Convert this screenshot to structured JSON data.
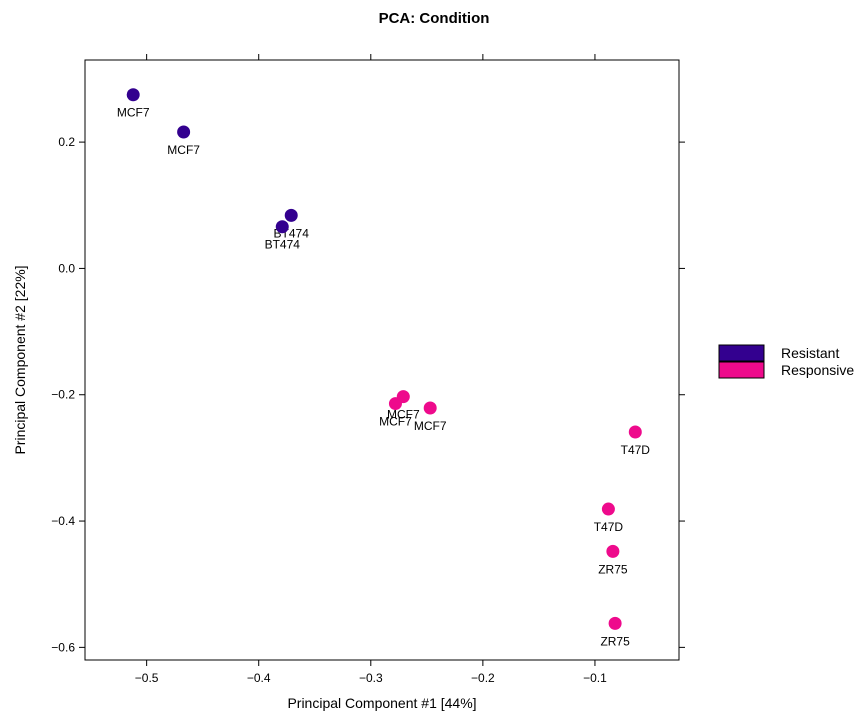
{
  "chart_data": {
    "type": "scatter",
    "title": "PCA: Condition",
    "xlabel": "Principal Component #1 [44%]",
    "ylabel": "Principal Component #2 [22%]",
    "xlim": [
      -0.555,
      -0.025
    ],
    "ylim": [
      -0.62,
      0.33
    ],
    "grid": false,
    "legend_position": "right",
    "x_ticks": [
      {
        "value": -0.5,
        "label": "−0.5"
      },
      {
        "value": -0.4,
        "label": "−0.4"
      },
      {
        "value": -0.3,
        "label": "−0.3"
      },
      {
        "value": -0.2,
        "label": "−0.2"
      },
      {
        "value": -0.1,
        "label": "−0.1"
      }
    ],
    "y_ticks": [
      {
        "value": 0.2,
        "label": "0.2"
      },
      {
        "value": 0.0,
        "label": "0.0"
      },
      {
        "value": -0.2,
        "label": "−0.2"
      },
      {
        "value": -0.4,
        "label": "−0.4"
      },
      {
        "value": -0.6,
        "label": "−0.6"
      }
    ],
    "series": [
      {
        "name": "Resistant",
        "color": "#33008f",
        "points": [
          {
            "x": -0.512,
            "y": 0.275,
            "label": "MCF7"
          },
          {
            "x": -0.467,
            "y": 0.216,
            "label": "MCF7"
          },
          {
            "x": -0.371,
            "y": 0.084,
            "label": "BT474"
          },
          {
            "x": -0.379,
            "y": 0.066,
            "label": "BT474"
          }
        ]
      },
      {
        "name": "Responsive",
        "color": "#ee0a8c",
        "points": [
          {
            "x": -0.271,
            "y": -0.203,
            "label": "MCF7"
          },
          {
            "x": -0.278,
            "y": -0.214,
            "label": "MCF7"
          },
          {
            "x": -0.247,
            "y": -0.221,
            "label": "MCF7"
          },
          {
            "x": -0.064,
            "y": -0.259,
            "label": "T47D"
          },
          {
            "x": -0.088,
            "y": -0.381,
            "label": "T47D"
          },
          {
            "x": -0.084,
            "y": -0.448,
            "label": "ZR75"
          },
          {
            "x": -0.082,
            "y": -0.562,
            "label": "ZR75"
          }
        ]
      }
    ]
  }
}
